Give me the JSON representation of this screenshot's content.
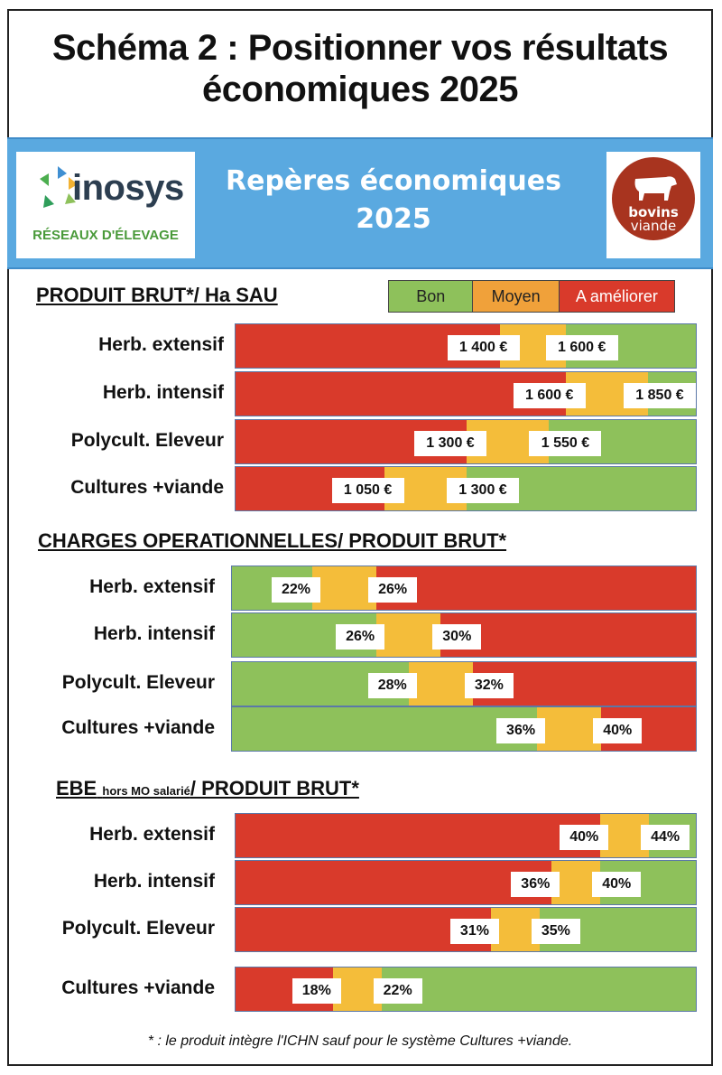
{
  "title_line1": "Schéma 2 : Positionner vos résultats",
  "title_line2": "économiques 2025",
  "header": {
    "band_title_line1": "Repères économiques",
    "band_title_line2": "2025",
    "logo_left_word": "inosys",
    "logo_left_sub": "RÉSEAUX D'ÉLEVAGE",
    "logo_right_line1": "bovins",
    "logo_right_line2": "viande"
  },
  "legend": {
    "good": "Bon",
    "medium": "Moyen",
    "bad": "A améliorer"
  },
  "colors": {
    "good": "#8ec15b",
    "medium": "#f4bd3a",
    "bad": "#d93a2b",
    "band": "#5aa9e0"
  },
  "footnote": "* : le produit intègre l'ICHN sauf pour le système Cultures +viande.",
  "chart_data": [
    {
      "type": "bar",
      "title": "PRODUIT BRUT*/ Ha SAU",
      "orientation": "low-is-bad",
      "categories": [
        "Herb. extensif",
        "Herb. intensif",
        "Polycult. Eleveur",
        "Cultures +viande"
      ],
      "thresholds_low": [
        1400,
        1600,
        1300,
        1050
      ],
      "thresholds_high": [
        1600,
        1850,
        1550,
        1300
      ],
      "labels_low": [
        "1 400 €",
        "1 600 €",
        "1 300 €",
        "1 050 €"
      ],
      "labels_high": [
        "1 600 €",
        "1 850 €",
        "1 550 €",
        "1 300 €"
      ],
      "xlim": [
        600,
        2000
      ],
      "zones": [
        "A améliorer",
        "Moyen",
        "Bon"
      ]
    },
    {
      "type": "bar",
      "title": "CHARGES OPERATIONNELLES/ PRODUIT BRUT*",
      "orientation": "low-is-good",
      "categories": [
        "Herb. extensif",
        "Herb. intensif",
        "Polycult. Eleveur",
        "Cultures +viande"
      ],
      "thresholds_low": [
        22,
        26,
        28,
        36
      ],
      "thresholds_high": [
        26,
        30,
        32,
        40
      ],
      "labels_low": [
        "22%",
        "26%",
        "28%",
        "36%"
      ],
      "labels_high": [
        "26%",
        "30%",
        "32%",
        "40%"
      ],
      "xlim": [
        17,
        46
      ],
      "zones": [
        "Bon",
        "Moyen",
        "A améliorer"
      ]
    },
    {
      "type": "bar",
      "title_main": "EBE",
      "title_small": "hors MO salarié",
      "title_rest": "/ PRODUIT BRUT*",
      "orientation": "low-is-bad",
      "categories": [
        "Herb. extensif",
        "Herb. intensif",
        "Polycult. Eleveur",
        "Cultures +viande"
      ],
      "thresholds_low": [
        40,
        36,
        31,
        18
      ],
      "thresholds_high": [
        44,
        40,
        35,
        22
      ],
      "labels_low": [
        "40%",
        "36%",
        "31%",
        "18%"
      ],
      "labels_high": [
        "44%",
        "40%",
        "35%",
        "22%"
      ],
      "xlim": [
        10,
        48
      ],
      "zones": [
        "A améliorer",
        "Moyen",
        "Bon"
      ]
    }
  ]
}
